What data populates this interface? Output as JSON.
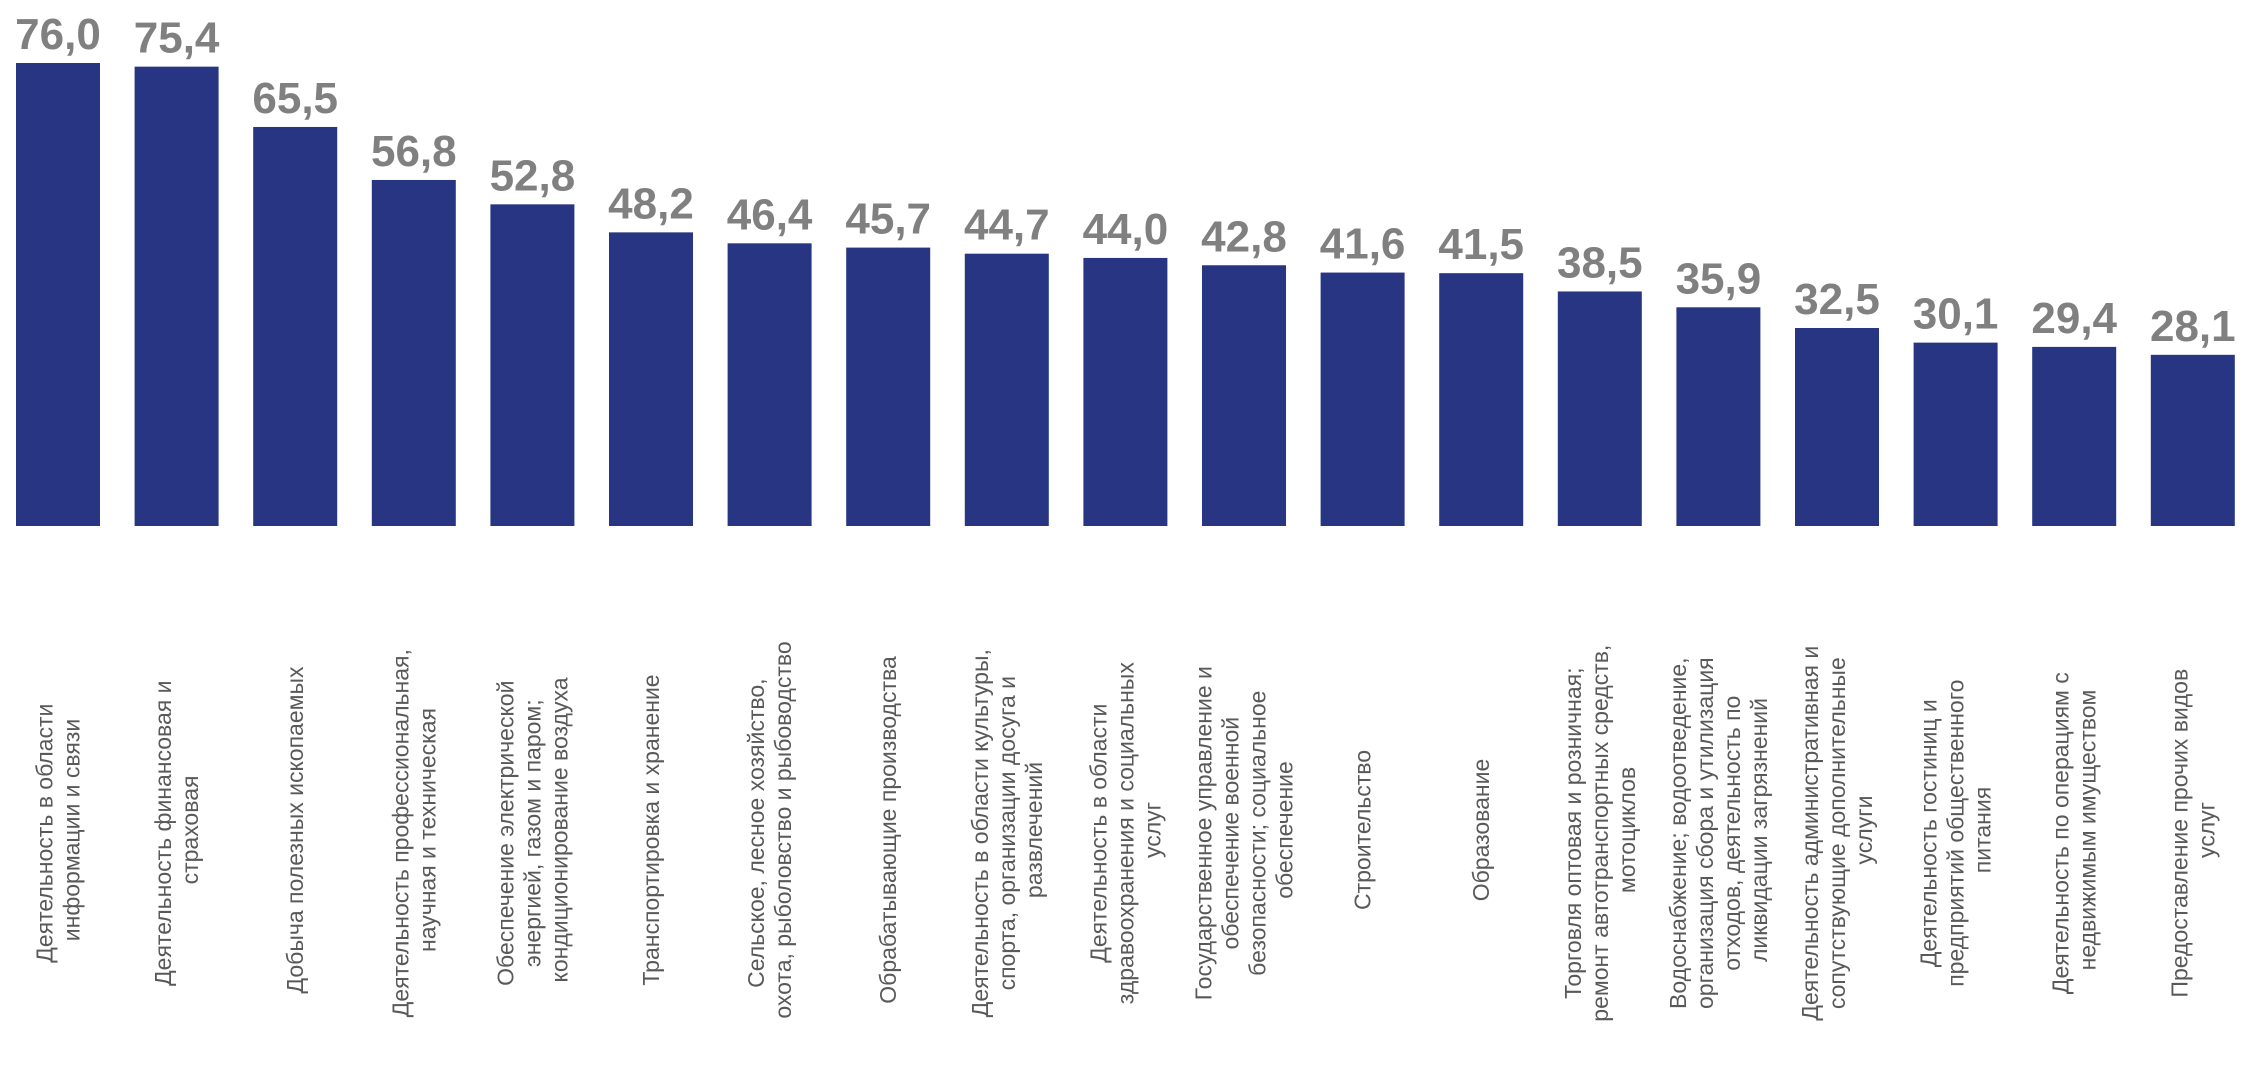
{
  "chart_data": {
    "type": "bar",
    "color": "#283583",
    "categories": [
      "Деятельность в области информации и связи",
      "Деятельность финансовая и страховая",
      "Добыча полезных ископаемых",
      "Деятельность профессиональная, научная и техническая",
      "Обеспечение электрической энергией, газом и паром; кондиционирование воздуха",
      "Транспортировка и хранение",
      "Сельское, лесное хозяйство, охота, рыболовство и рыбоводство",
      "Обрабатывающие производства",
      "Деятельность в области культуры, спорта, организации досуга и развлечений",
      "Деятельность в области здравоохранения и социальных услуг",
      "Государственное управление и обеспечение военной безопасности; социальное обеспечение",
      "Строительство",
      "Образование",
      "Торговля оптовая и розничная; ремонт автотранспортных средств, мотоциклов",
      "Водоснабжение; водоотведение, организация сбора и утилизация отходов, деятельность по ликвидации загрязнений",
      "Деятельность административная и сопутствующие дополнительные услуги",
      "Деятельность гостиниц и предприятий общественного питания",
      "Деятельность по операциям с недвижимым имуществом",
      "Предоставление прочих видов услуг"
    ],
    "values": [
      76.0,
      75.4,
      65.5,
      56.8,
      52.8,
      48.2,
      46.4,
      45.7,
      44.7,
      44.0,
      42.8,
      41.6,
      41.5,
      38.5,
      35.9,
      32.5,
      30.1,
      29.4,
      28.1
    ],
    "value_labels": [
      "76,0",
      "75,4",
      "65,5",
      "56,8",
      "52,8",
      "48,2",
      "46,4",
      "45,7",
      "44,7",
      "44,0",
      "42,8",
      "41,6",
      "41,5",
      "38,5",
      "35,9",
      "32,5",
      "30,1",
      "29,4",
      "28,1"
    ]
  }
}
